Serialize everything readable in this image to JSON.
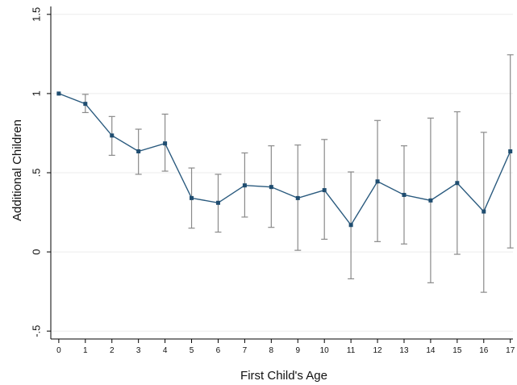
{
  "chart_data": {
    "type": "line",
    "xlabel": "First Child's Age",
    "ylabel": "Additional Children",
    "x": [
      0,
      1,
      2,
      3,
      4,
      5,
      6,
      7,
      8,
      9,
      10,
      11,
      12,
      13,
      14,
      15,
      16,
      17
    ],
    "y": [
      1.0,
      0.935,
      0.735,
      0.635,
      0.685,
      0.34,
      0.31,
      0.42,
      0.41,
      0.34,
      0.39,
      0.17,
      0.445,
      0.36,
      0.325,
      0.435,
      0.255,
      0.635
    ],
    "ci_lower": [
      1.0,
      0.88,
      0.61,
      0.49,
      0.51,
      0.15,
      0.125,
      0.22,
      0.155,
      0.01,
      0.08,
      -0.17,
      0.065,
      0.05,
      -0.195,
      -0.015,
      -0.255,
      0.025
    ],
    "ci_upper": [
      1.0,
      0.995,
      0.855,
      0.775,
      0.87,
      0.53,
      0.49,
      0.625,
      0.67,
      0.675,
      0.71,
      0.505,
      0.83,
      0.67,
      0.845,
      0.885,
      0.755,
      1.245
    ],
    "x_ticks": [
      "0",
      "1",
      "2",
      "3",
      "4",
      "5",
      "6",
      "7",
      "8",
      "9",
      "10",
      "11",
      "12",
      "13",
      "14",
      "15",
      "16",
      "17"
    ],
    "y_ticks": [
      -0.5,
      0,
      0.5,
      1,
      1.5
    ],
    "y_tick_labels": [
      "-.5",
      "0",
      ".5",
      "1",
      "1.5"
    ],
    "ylim": [
      -0.55,
      1.55
    ],
    "xlim": [
      -0.3,
      17.1
    ],
    "grid": true,
    "colors": {
      "line": "#2a5a7e",
      "marker": "#1f4d70",
      "error_bar": "#8a8a8a",
      "grid": "#ececec",
      "axis": "#000000"
    }
  }
}
